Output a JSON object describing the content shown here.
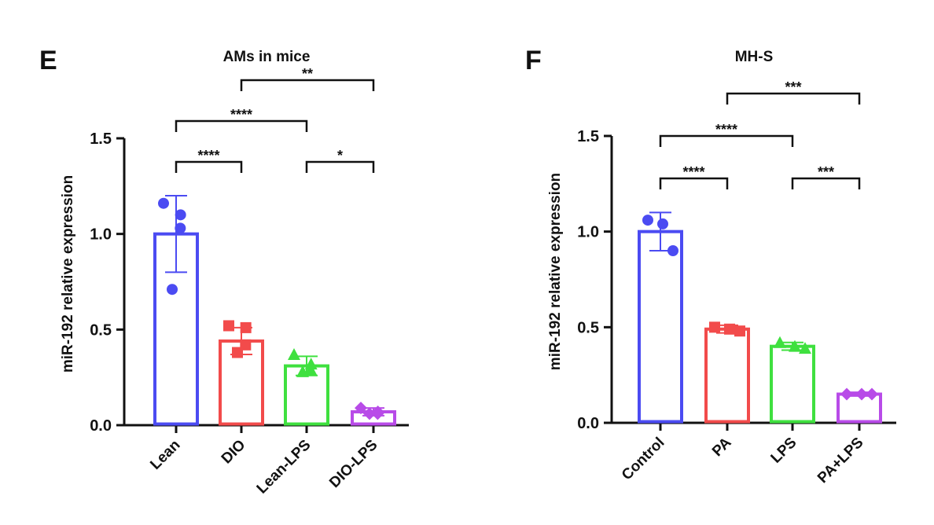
{
  "chart_data": [
    {
      "type": "bar",
      "panel": "E",
      "title": "AMs in mice",
      "y_label": "miR-192 relative expression",
      "categories": [
        "Lean",
        "DIO",
        "Lean-LPS",
        "DIO-LPS"
      ],
      "colors": [
        "#4b4bf2",
        "#f24b4b",
        "#3fe03f",
        "#b84be8"
      ],
      "markers": [
        "circle",
        "square",
        "triangle",
        "diamond"
      ],
      "values": [
        1.0,
        0.44,
        0.31,
        0.07
      ],
      "errors": [
        0.2,
        0.07,
        0.05,
        0.02
      ],
      "points": [
        [
          1.16,
          1.1,
          1.03,
          0.71
        ],
        [
          0.52,
          0.51,
          0.42,
          0.38
        ],
        [
          0.37,
          0.32,
          0.29,
          0.28
        ],
        [
          0.09,
          0.07,
          0.06,
          0.06
        ]
      ],
      "ylim": [
        0,
        1.5
      ],
      "yticks": [
        {
          "value": 0,
          "label": "0.0"
        },
        0.5,
        {
          "value": 1,
          "label": "1.0"
        },
        1.5
      ],
      "comparisons": [
        {
          "groups": [
            "Lean",
            "DIO"
          ],
          "label": "****"
        },
        {
          "groups": [
            "Lean-LPS",
            "DIO-LPS"
          ],
          "label": "*"
        },
        {
          "groups": [
            "Lean",
            "Lean-LPS"
          ],
          "label": "****"
        },
        {
          "groups": [
            "DIO",
            "DIO-LPS"
          ],
          "label": "**"
        }
      ]
    },
    {
      "type": "bar",
      "panel": "F",
      "title": "MH-S",
      "y_label": "miR-192 relative expression",
      "categories": [
        "Control",
        "PA",
        "LPS",
        "PA+LPS"
      ],
      "colors": [
        "#4b4bf2",
        "#f24b4b",
        "#3fe03f",
        "#b84be8"
      ],
      "markers": [
        "circle",
        "square",
        "triangle",
        "diamond"
      ],
      "values": [
        1.0,
        0.49,
        0.4,
        0.15
      ],
      "errors": [
        0.1,
        0.02,
        0.02,
        0.01
      ],
      "points": [
        [
          1.06,
          1.04,
          0.9
        ],
        [
          0.5,
          0.49,
          0.48
        ],
        [
          0.42,
          0.4,
          0.39
        ],
        [
          0.15,
          0.15,
          0.15
        ]
      ],
      "ylim": [
        0,
        1.5
      ],
      "yticks": [
        {
          "value": 0,
          "label": "0.0"
        },
        0.5,
        {
          "value": 1,
          "label": "1.0"
        },
        1.5
      ],
      "comparisons": [
        {
          "groups": [
            "Control",
            "PA"
          ],
          "label": "****"
        },
        {
          "groups": [
            "LPS",
            "PA+LPS"
          ],
          "label": "***"
        },
        {
          "groups": [
            "Control",
            "LPS"
          ],
          "label": "****"
        },
        {
          "groups": [
            "PA",
            "PA+LPS"
          ],
          "label": "***"
        }
      ]
    }
  ]
}
